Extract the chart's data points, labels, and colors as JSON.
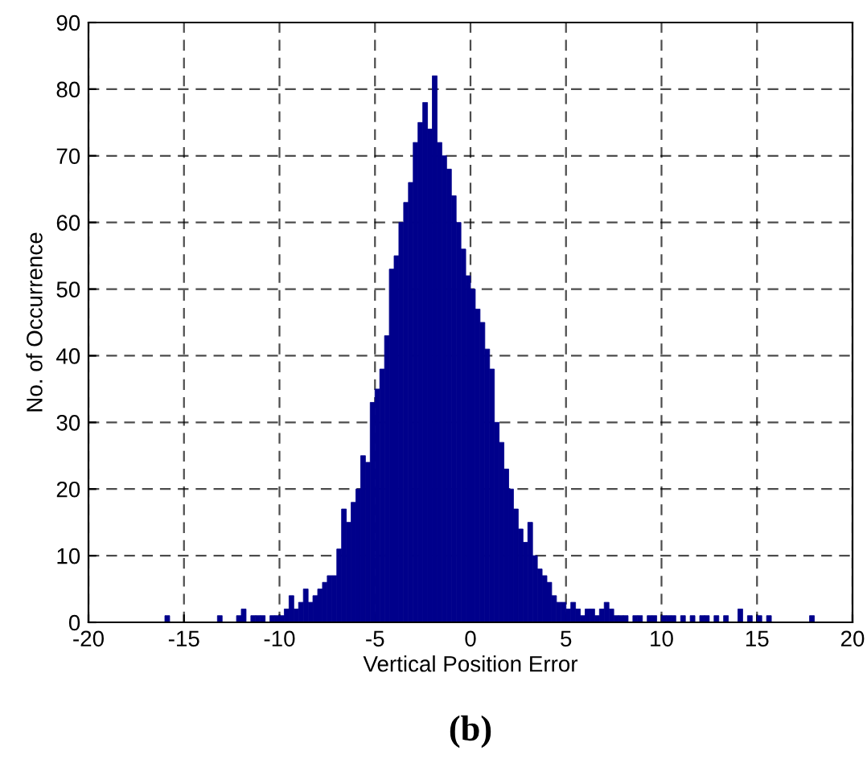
{
  "chart_data": {
    "type": "histogram",
    "xlabel": "Vertical Position Error",
    "ylabel": "No. of Occurrence",
    "annotations": [
      "(b)"
    ],
    "color": "#00008b",
    "bins": [
      -16,
      -15.75,
      -15.5,
      -15.25,
      -15,
      -14.75,
      -14.5,
      -14.25,
      -14,
      -13.75,
      -13.5,
      -13.25,
      -13,
      -12.75,
      -12.5,
      -12.25,
      -12,
      -11.75,
      -11.5,
      -11.25,
      -11,
      -10.75,
      -10.5,
      -10.25,
      -10,
      -9.75,
      -9.5,
      -9.25,
      -9,
      -8.75,
      -8.5,
      -8.25,
      -8,
      -7.75,
      -7.5,
      -7.25,
      -7,
      -6.75,
      -6.5,
      -6.25,
      -6,
      -5.75,
      -5.5,
      -5.25,
      -5,
      -4.75,
      -4.5,
      -4.25,
      -4,
      -3.75,
      -3.5,
      -3.25,
      -3,
      -2.75,
      -2.5,
      -2.25,
      -2,
      -1.75,
      -1.5,
      -1.25,
      -1,
      -0.75,
      -0.5,
      -0.25,
      0,
      0.25,
      0.5,
      0.75,
      1,
      1.25,
      1.5,
      1.75,
      2,
      2.25,
      2.5,
      2.75,
      3,
      3.25,
      3.5,
      3.75,
      4,
      4.25,
      4.5,
      4.75,
      5,
      5.25,
      5.5,
      5.75,
      6,
      6.25,
      6.5,
      6.75,
      7,
      7.25,
      7.5,
      7.75,
      8,
      8.25,
      8.5,
      8.75,
      9,
      9.25,
      9.5,
      9.75,
      10,
      10.25,
      10.5,
      10.75,
      11,
      11.25,
      11.5,
      11.75,
      12,
      12.25,
      12.5,
      12.75,
      13,
      13.25,
      13.5,
      13.75,
      14,
      14.25,
      14.5,
      14.75,
      15,
      15.25,
      15.5,
      15.75,
      16,
      16.25,
      16.5,
      16.75,
      17,
      17.25,
      17.5,
      17.75,
      18
    ],
    "values": [
      1,
      0,
      0,
      0,
      0,
      0,
      0,
      0,
      0,
      0,
      0,
      1,
      0,
      0,
      0,
      1,
      2,
      0,
      1,
      1,
      1,
      0,
      1,
      1,
      1,
      2,
      4,
      2,
      3,
      5,
      3,
      4,
      5,
      6,
      7,
      7,
      11,
      17,
      15,
      18,
      20,
      25,
      24,
      33,
      35,
      38,
      43,
      53,
      55,
      60,
      63,
      66,
      72,
      75,
      78,
      74,
      82,
      72,
      70,
      68,
      64,
      60,
      56,
      52,
      50,
      47,
      45,
      41,
      38,
      30,
      27,
      23,
      20,
      17,
      14,
      12,
      15,
      10,
      8,
      7,
      6,
      4,
      3,
      3,
      2,
      3,
      2,
      1,
      2,
      2,
      1,
      2,
      3,
      2,
      1,
      1,
      1,
      0,
      1,
      1,
      0,
      1,
      1,
      0,
      1,
      1,
      1,
      0,
      1,
      0,
      1,
      0,
      1,
      1,
      0,
      1,
      0,
      1,
      0,
      0,
      2,
      0,
      1,
      0,
      1,
      0,
      1,
      0,
      0,
      0,
      0,
      0,
      0,
      0,
      0,
      1
    ],
    "xlim": [
      -20,
      20
    ],
    "xticks": [
      -20,
      -15,
      -10,
      -5,
      0,
      5,
      10,
      15,
      20
    ],
    "ylim": [
      0,
      90
    ],
    "yticks": [
      0,
      10,
      20,
      30,
      40,
      50,
      60,
      70,
      80,
      90
    ],
    "grid": true
  }
}
